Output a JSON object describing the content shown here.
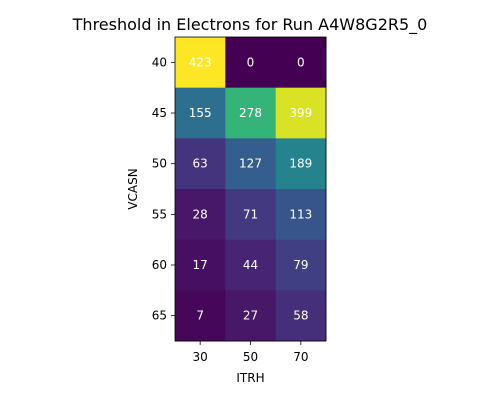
{
  "chart_data": {
    "type": "heatmap",
    "title": "Threshold in Electrons for Run A4W8G2R5_0",
    "xlabel": "ITRH",
    "ylabel": "VCASN",
    "x_categories": [
      "30",
      "50",
      "70"
    ],
    "y_categories": [
      "40",
      "45",
      "50",
      "55",
      "60",
      "65"
    ],
    "values": [
      [
        423,
        0,
        0
      ],
      [
        155,
        278,
        399
      ],
      [
        63,
        127,
        189
      ],
      [
        28,
        71,
        113
      ],
      [
        17,
        44,
        79
      ],
      [
        7,
        27,
        58
      ]
    ],
    "colormap": "viridis",
    "vmin": 0,
    "vmax": 423,
    "grid": false,
    "colorbar": false
  }
}
